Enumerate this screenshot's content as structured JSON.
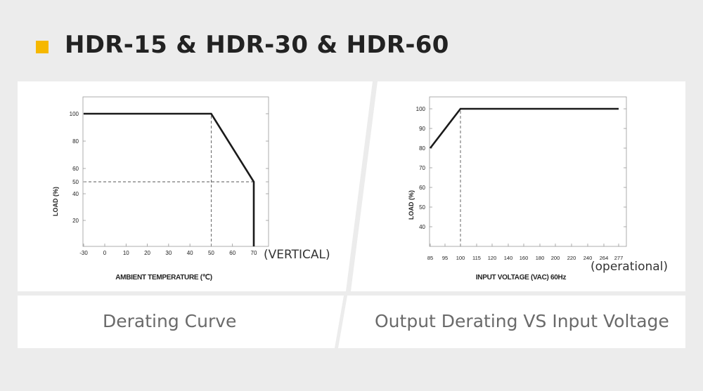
{
  "header": {
    "title": "HDR-15 & HDR-30 & HDR-60",
    "accent": "#f6b800"
  },
  "captions": {
    "left": "Derating Curve",
    "right": "Output Derating VS Input Voltage"
  },
  "notes": {
    "left": "(VERTICAL)",
    "right": "(operational)"
  },
  "chart_data": [
    {
      "type": "line",
      "xlabel": "AMBIENT TEMPERATURE (℃)",
      "ylabel": "LOAD (%)",
      "xlim": [
        -30,
        80
      ],
      "ylim": [
        0,
        110
      ],
      "x_ticks": [
        -30,
        0,
        10,
        20,
        30,
        40,
        50,
        60,
        70
      ],
      "y_ticks": [
        20,
        40,
        50,
        60,
        80,
        100
      ],
      "series": [
        {
          "values": [
            [
              -30,
              100
            ],
            [
              50,
              100
            ],
            [
              70,
              50
            ],
            [
              70,
              0
            ]
          ]
        }
      ],
      "reference_lines": [
        {
          "from": [
            50,
            0
          ],
          "to": [
            50,
            100
          ]
        },
        {
          "from": [
            -30,
            50
          ],
          "to": [
            70,
            50
          ]
        }
      ]
    },
    {
      "type": "line",
      "xlabel": "INPUT VOLTAGE (VAC) 60Hz",
      "ylabel": "LOAD (%)",
      "x_ticks": [
        "85",
        "95",
        "100",
        "115",
        "120",
        "140",
        "160",
        "180",
        "200",
        "220",
        "240",
        "264",
        "277"
      ],
      "ylim": [
        30,
        105
      ],
      "y_ticks": [
        40,
        50,
        60,
        70,
        80,
        90,
        100
      ],
      "series": [
        {
          "values": [
            [
              85,
              80
            ],
            [
              100,
              100
            ],
            [
              277,
              100
            ]
          ]
        }
      ],
      "reference_lines": [
        {
          "from": [
            100,
            30
          ],
          "to": [
            100,
            100
          ]
        }
      ]
    }
  ]
}
